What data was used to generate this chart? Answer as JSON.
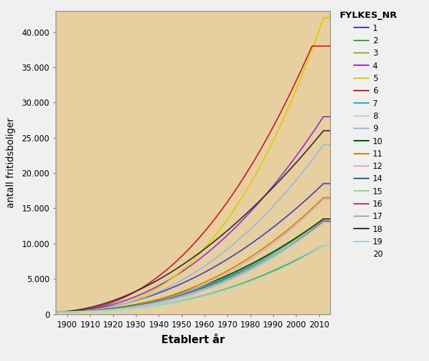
{
  "title": "",
  "xlabel": "Etablert år",
  "ylabel": "antall fritidsboliger",
  "legend_title": "FYLKES_NR",
  "plot_bg_color": "#E8CFA0",
  "outer_bg_color": "#F0F0F0",
  "xmin": 1895,
  "xmax": 2015,
  "ymin": 0,
  "ymax": 43000,
  "xticks": [
    1900,
    1910,
    1920,
    1930,
    1940,
    1950,
    1960,
    1970,
    1980,
    1990,
    2000,
    2010
  ],
  "yticks": [
    0,
    5000,
    10000,
    15000,
    20000,
    25000,
    30000,
    35000,
    40000
  ],
  "county_order": [
    "1",
    "2",
    "3",
    "4",
    "5",
    "6",
    "7",
    "8",
    "9",
    "10",
    "11",
    "12",
    "14",
    "15",
    "16",
    "17",
    "18",
    "19",
    "20"
  ],
  "counties": {
    "1": {
      "color": "#4444BB",
      "has_line": true
    },
    "2": {
      "color": "#33AA33",
      "has_line": true
    },
    "3": {
      "color": "#AAAA44",
      "has_line": true
    },
    "4": {
      "color": "#9933CC",
      "has_line": true
    },
    "5": {
      "color": "#DDCC00",
      "has_line": true
    },
    "6": {
      "color": "#CC2222",
      "has_line": true
    },
    "7": {
      "color": "#33AAAA",
      "has_line": true
    },
    "8": {
      "color": "#CCCCCC",
      "has_line": true
    },
    "9": {
      "color": "#99BBDD",
      "has_line": true
    },
    "10": {
      "color": "#005500",
      "has_line": true
    },
    "11": {
      "color": "#CC8800",
      "has_line": true
    },
    "12": {
      "color": "#DDAACC",
      "has_line": true
    },
    "14": {
      "color": "#336688",
      "has_line": true
    },
    "15": {
      "color": "#88DD88",
      "has_line": true
    },
    "16": {
      "color": "#CC3366",
      "has_line": true
    },
    "17": {
      "color": "#AAAAAA",
      "has_line": true
    },
    "18": {
      "color": "#333333",
      "has_line": true
    },
    "19": {
      "color": "#AACCDD",
      "has_line": true
    },
    "20": {
      "color": "#AADDCC",
      "has_line": false
    }
  },
  "county_params": {
    "1": [
      1895,
      2012,
      18500,
      2.0
    ],
    "2": [
      1895,
      2012,
      9700,
      2.3
    ],
    "3": [
      1895,
      2012,
      13500,
      2.2
    ],
    "4": [
      1895,
      2012,
      28000,
      2.1
    ],
    "5": [
      1895,
      2012,
      42000,
      2.6
    ],
    "6": [
      1895,
      2007,
      38000,
      2.2
    ],
    "7": [
      1895,
      2012,
      13500,
      2.2
    ],
    "8": [
      1895,
      2012,
      10000,
      2.3
    ],
    "9": [
      1895,
      2012,
      24000,
      2.2
    ],
    "10": [
      1895,
      2012,
      13500,
      2.1
    ],
    "11": [
      1895,
      2012,
      16500,
      2.3
    ],
    "12": [
      1895,
      2012,
      16300,
      2.4
    ],
    "14": [
      1895,
      2012,
      13000,
      2.2
    ],
    "15": [
      1895,
      2012,
      13200,
      2.3
    ],
    "16": [
      1895,
      2012,
      13200,
      2.4
    ],
    "17": [
      1895,
      2012,
      13000,
      2.3
    ],
    "18": [
      1895,
      2012,
      26000,
      1.8
    ],
    "19": [
      1895,
      2012,
      13000,
      2.4
    ],
    "20": [
      1895,
      2012,
      9700,
      2.5
    ]
  }
}
